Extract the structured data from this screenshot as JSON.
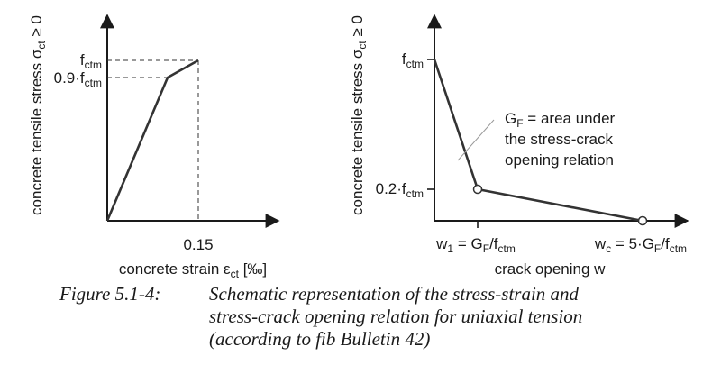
{
  "colors": {
    "ink": "#1a1a1a",
    "curve": "#333333",
    "leader": "#999999",
    "background": "#ffffff"
  },
  "left_diagram": {
    "y_axis_label": "concrete tensile stress σ",
    "y_axis_label_sub": "ct",
    "y_axis_label_tail": " ≥ 0",
    "x_axis_label": "concrete strain ε",
    "x_axis_label_sub": "ct",
    "x_axis_label_tail": " [‰]",
    "x_tick": "0.15",
    "peak_label": "f",
    "peak_label_sub": "ctm",
    "knee_label": "0.9·f",
    "knee_label_sub": "ctm"
  },
  "right_diagram": {
    "y_axis_label": "concrete tensile stress σ",
    "y_axis_label_sub": "ct",
    "y_axis_label_tail": " ≥ 0",
    "x_axis_label": "crack opening w",
    "peak_label": "f",
    "peak_label_sub": "ctm",
    "knee_label": "0.2·f",
    "knee_label_sub": "ctm",
    "w1_label": {
      "w": "w",
      "w_sub": "1",
      "eq": " = G",
      "g_sub": "F",
      "div": "/f",
      "f_sub": "ctm"
    },
    "wc_label": {
      "w": "w",
      "w_sub": "c",
      "eq": " = 5·G",
      "g_sub": "F",
      "div": "/f",
      "f_sub": "ctm"
    },
    "annotation_line1_g": "G",
    "annotation_line1_g_sub": "F",
    "annotation_line1_rest": " = area under",
    "annotation_line2": "the stress-crack",
    "annotation_line3": "opening relation"
  },
  "caption": {
    "label": "Figure 5.1-4:",
    "line1": "Schematic representation of the stress-strain and",
    "line2": "stress-crack opening relation for uniaxial tension",
    "line3": "(according to fib Bulletin 42)"
  }
}
